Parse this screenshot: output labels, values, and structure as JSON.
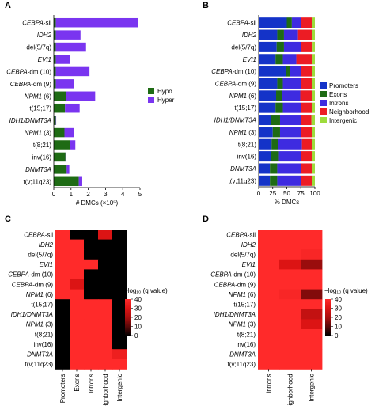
{
  "row_labels": [
    [
      [
        "CEBPA",
        true
      ],
      [
        "-sil",
        false
      ]
    ],
    [
      [
        "IDH2",
        true
      ]
    ],
    [
      [
        "del(5/7q)",
        false
      ]
    ],
    [
      [
        "EVI1",
        true
      ]
    ],
    [
      [
        "CEBPA",
        true
      ],
      [
        "-dm (10)",
        false
      ]
    ],
    [
      [
        "CEBPA",
        true
      ],
      [
        "-dm (9)",
        false
      ]
    ],
    [
      [
        "NPM1",
        true
      ],
      [
        " (6)",
        false
      ]
    ],
    [
      [
        "t(15;17)",
        false
      ]
    ],
    [
      [
        "IDH1/DNMT3A",
        true
      ]
    ],
    [
      [
        "NPM1",
        true
      ],
      [
        " (3)",
        false
      ]
    ],
    [
      [
        "t(8;21)",
        false
      ]
    ],
    [
      [
        "inv(16)",
        false
      ]
    ],
    [
      [
        "DNMT3A",
        true
      ]
    ],
    [
      [
        "t(v;11q23)",
        false
      ]
    ]
  ],
  "chart_data": [
    {
      "panel": "A",
      "type": "bar",
      "orientation": "horizontal",
      "stacked": true,
      "xlabel": "# DMCs (×10⁵)",
      "xlim": [
        0,
        5
      ],
      "xticks": [
        "0",
        "1",
        "2",
        "3",
        "4",
        "5"
      ],
      "series": [
        {
          "name": "Hypo",
          "color": "#1e6b14",
          "values": [
            0.12,
            0.12,
            0.12,
            0.12,
            0.12,
            0.12,
            0.7,
            0.65,
            0.12,
            0.62,
            0.95,
            0.68,
            0.75,
            1.45
          ]
        },
        {
          "name": "Hyper",
          "color": "#7a35f0",
          "values": [
            4.78,
            1.43,
            1.75,
            0.83,
            1.95,
            1.05,
            1.7,
            0.85,
            0.02,
            0.55,
            0.3,
            0.05,
            0.15,
            0.2
          ]
        }
      ],
      "legend": "right"
    },
    {
      "panel": "B",
      "type": "bar",
      "orientation": "horizontal",
      "stacked": true,
      "percent": true,
      "xlabel": "% DMCs",
      "xlim": [
        0,
        100
      ],
      "xticks": [
        "0",
        "25",
        "50",
        "75",
        "100"
      ],
      "series": [
        {
          "name": "Promoters",
          "color": "#1433c8",
          "values": [
            50,
            33,
            32,
            30,
            48,
            33,
            31,
            30,
            22,
            25,
            23,
            22,
            20,
            20
          ]
        },
        {
          "name": "Exons",
          "color": "#1e6b14",
          "values": [
            9,
            12,
            13,
            13,
            8,
            10,
            11,
            13,
            16,
            13,
            12,
            14,
            13,
            13
          ]
        },
        {
          "name": "Introns",
          "color": "#3e2be0",
          "values": [
            16,
            25,
            30,
            24,
            20,
            32,
            32,
            33,
            38,
            37,
            42,
            40,
            42,
            42
          ]
        },
        {
          "name": "Neighborhood",
          "color": "#ec1c24",
          "values": [
            20,
            25,
            21,
            28,
            19,
            20,
            21,
            19,
            18,
            20,
            18,
            19,
            20,
            20
          ]
        },
        {
          "name": "Intergenic",
          "color": "#9edc3c",
          "values": [
            5,
            5,
            4,
            5,
            5,
            5,
            5,
            5,
            6,
            5,
            5,
            5,
            5,
            5
          ]
        }
      ],
      "legend": "right"
    },
    {
      "panel": "C",
      "type": "heatmap",
      "columns": [
        "Promoters",
        "Exons",
        "Introns",
        "Neighborhood",
        "Intergenic"
      ],
      "colorbar_label": "−log₁₀ (q value)",
      "colorbar_ticks": [
        "40",
        "30",
        "20",
        "10",
        "0"
      ],
      "colorbar_range": [
        0,
        40
      ],
      "values": [
        [
          40,
          0,
          0,
          30,
          0
        ],
        [
          40,
          40,
          0,
          0,
          0
        ],
        [
          40,
          40,
          0,
          0,
          0
        ],
        [
          40,
          40,
          40,
          0,
          0
        ],
        [
          40,
          40,
          0,
          0,
          0
        ],
        [
          40,
          30,
          0,
          0,
          0
        ],
        [
          40,
          40,
          0,
          0,
          0
        ],
        [
          0,
          40,
          40,
          40,
          0
        ],
        [
          0,
          40,
          40,
          40,
          0
        ],
        [
          0,
          40,
          40,
          40,
          0
        ],
        [
          0,
          40,
          40,
          40,
          0
        ],
        [
          0,
          40,
          40,
          40,
          0
        ],
        [
          0,
          40,
          40,
          40,
          35
        ],
        [
          0,
          40,
          40,
          40,
          40
        ]
      ]
    },
    {
      "panel": "D",
      "type": "heatmap",
      "columns": [
        "Introns",
        "Neighborhood",
        "Intergenic"
      ],
      "colorbar_label": "−log₁₀ (q value)",
      "colorbar_ticks": [
        "40",
        "30",
        "20",
        "10",
        "0"
      ],
      "colorbar_range": [
        0,
        40
      ],
      "values": [
        [
          40,
          40,
          40
        ],
        [
          40,
          40,
          40
        ],
        [
          40,
          40,
          38
        ],
        [
          40,
          30,
          18
        ],
        [
          40,
          40,
          40
        ],
        [
          40,
          40,
          40
        ],
        [
          40,
          38,
          15
        ],
        [
          40,
          40,
          40
        ],
        [
          40,
          40,
          25
        ],
        [
          40,
          40,
          30
        ],
        [
          40,
          40,
          40
        ],
        [
          40,
          40,
          40
        ],
        [
          40,
          40,
          40
        ],
        [
          40,
          40,
          40
        ]
      ]
    }
  ]
}
